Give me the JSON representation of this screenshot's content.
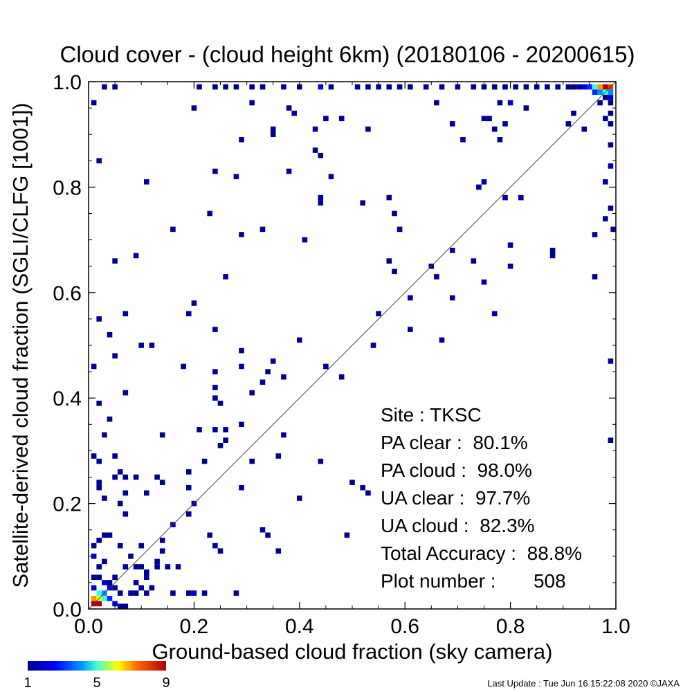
{
  "chart_data": {
    "type": "heatmap",
    "title": "Cloud cover - (cloud height 6km)  (20180106 - 20200615)",
    "xlabel": "Ground-based cloud fraction (sky camera)",
    "ylabel": "Satellite-derived cloud fraction (SGLI/CLFG [1001])",
    "xlim": [
      0.0,
      1.0
    ],
    "ylim": [
      0.0,
      1.0
    ],
    "xticks": [
      "0.0",
      "0.2",
      "0.4",
      "0.6",
      "0.8",
      "1.0"
    ],
    "yticks": [
      "0.0",
      "0.2",
      "0.4",
      "0.6",
      "0.8",
      "1.0"
    ],
    "bin_size": 0.01,
    "diagonal_line": true,
    "colorbar": {
      "min": 1,
      "max": 9,
      "ticks": [
        "1",
        "5",
        "9"
      ]
    },
    "stats": [
      {
        "label": "Site : ",
        "value": "TKSC"
      },
      {
        "label": "PA clear :  ",
        "value": "80.1%"
      },
      {
        "label": "PA cloud :  ",
        "value": "98.0%"
      },
      {
        "label": "UA clear :  ",
        "value": "97.7%"
      },
      {
        "label": "UA cloud :  ",
        "value": "82.3%"
      },
      {
        "label": "Total Accuracy :  ",
        "value": "88.8%"
      },
      {
        "label": "Plot number :       ",
        "value": "508"
      }
    ],
    "cells": [
      [
        0.01,
        0.01,
        9
      ],
      [
        0.02,
        0.01,
        9
      ],
      [
        0.01,
        0.02,
        7
      ],
      [
        0.02,
        0.02,
        6
      ],
      [
        0.03,
        0.02,
        5
      ],
      [
        0.02,
        0.03,
        5
      ],
      [
        0.03,
        0.03,
        4
      ],
      [
        0.04,
        0.02,
        3
      ],
      [
        0.05,
        0.01,
        2
      ],
      [
        0.06,
        0.0,
        1
      ],
      [
        0.07,
        0.0,
        1
      ],
      [
        0.04,
        0.04,
        2
      ],
      [
        0.03,
        0.05,
        2
      ],
      [
        0.02,
        0.06,
        1
      ],
      [
        0.04,
        0.05,
        1
      ],
      [
        0.05,
        0.06,
        1
      ],
      [
        0.01,
        0.04,
        2
      ],
      [
        0.01,
        0.06,
        1
      ],
      [
        0.02,
        0.08,
        1
      ],
      [
        0.03,
        0.09,
        1
      ],
      [
        0.01,
        0.1,
        2
      ],
      [
        0.01,
        0.12,
        1
      ],
      [
        0.02,
        0.13,
        1
      ],
      [
        0.03,
        0.14,
        1
      ],
      [
        0.04,
        0.14,
        1
      ],
      [
        0.05,
        0.04,
        1
      ],
      [
        0.06,
        0.03,
        1
      ],
      [
        0.98,
        0.99,
        9
      ],
      [
        0.99,
        0.99,
        8
      ],
      [
        0.97,
        0.99,
        7
      ],
      [
        0.96,
        0.99,
        5
      ],
      [
        0.98,
        0.98,
        5
      ],
      [
        0.99,
        0.98,
        4
      ],
      [
        0.97,
        0.98,
        4
      ],
      [
        0.96,
        0.98,
        3
      ],
      [
        0.95,
        0.99,
        3
      ],
      [
        0.94,
        0.99,
        2
      ],
      [
        0.93,
        0.99,
        1
      ],
      [
        0.92,
        0.99,
        1
      ],
      [
        0.99,
        0.97,
        2
      ],
      [
        0.98,
        0.97,
        1
      ],
      [
        0.99,
        0.96,
        1
      ],
      [
        0.97,
        0.96,
        1
      ],
      [
        0.99,
        0.94,
        1
      ],
      [
        0.98,
        0.93,
        1
      ],
      [
        0.99,
        0.92,
        1
      ],
      [
        0.91,
        0.99,
        1
      ],
      [
        0.89,
        0.99,
        1
      ],
      [
        0.87,
        0.99,
        1
      ],
      [
        0.85,
        0.99,
        1
      ],
      [
        0.83,
        0.99,
        1
      ],
      [
        0.81,
        0.99,
        1
      ],
      [
        0.79,
        0.99,
        1
      ],
      [
        0.77,
        0.99,
        1
      ],
      [
        0.75,
        0.99,
        1
      ],
      [
        0.73,
        0.99,
        1
      ],
      [
        0.7,
        0.99,
        1
      ],
      [
        0.67,
        0.99,
        1
      ],
      [
        0.64,
        0.99,
        1
      ],
      [
        0.61,
        0.99,
        1
      ],
      [
        0.59,
        0.99,
        1
      ],
      [
        0.57,
        0.99,
        1
      ],
      [
        0.55,
        0.99,
        1
      ],
      [
        0.53,
        0.99,
        1
      ],
      [
        0.51,
        0.99,
        1
      ],
      [
        0.46,
        0.99,
        1
      ],
      [
        0.44,
        0.99,
        2
      ],
      [
        0.4,
        0.99,
        1
      ],
      [
        0.37,
        0.99,
        1
      ],
      [
        0.33,
        0.99,
        1
      ],
      [
        0.31,
        0.99,
        1
      ],
      [
        0.28,
        0.99,
        1
      ],
      [
        0.26,
        0.99,
        1
      ],
      [
        0.24,
        0.99,
        1
      ],
      [
        0.21,
        0.99,
        1
      ],
      [
        0.05,
        0.99,
        1
      ],
      [
        0.03,
        0.99,
        1
      ],
      [
        0.8,
        0.96,
        2
      ],
      [
        0.78,
        0.96,
        1
      ],
      [
        0.01,
        0.96,
        1
      ],
      [
        0.02,
        0.85,
        1
      ],
      [
        0.11,
        0.81,
        1
      ],
      [
        0.2,
        0.95,
        1
      ],
      [
        0.24,
        0.83,
        1
      ],
      [
        0.23,
        0.75,
        1
      ],
      [
        0.28,
        0.82,
        1
      ],
      [
        0.29,
        0.89,
        1
      ],
      [
        0.31,
        0.96,
        1
      ],
      [
        0.35,
        0.91,
        1
      ],
      [
        0.35,
        0.9,
        1
      ],
      [
        0.38,
        0.95,
        1
      ],
      [
        0.38,
        0.83,
        1
      ],
      [
        0.39,
        0.94,
        1
      ],
      [
        0.43,
        0.91,
        1
      ],
      [
        0.43,
        0.87,
        1
      ],
      [
        0.44,
        0.86,
        1
      ],
      [
        0.45,
        0.93,
        1
      ],
      [
        0.44,
        0.78,
        1
      ],
      [
        0.44,
        0.77,
        1
      ],
      [
        0.46,
        0.82,
        1
      ],
      [
        0.48,
        0.93,
        1
      ],
      [
        0.53,
        0.91,
        1
      ],
      [
        0.52,
        0.77,
        1
      ],
      [
        0.57,
        0.78,
        1
      ],
      [
        0.58,
        0.75,
        1
      ],
      [
        0.59,
        0.72,
        1
      ],
      [
        0.66,
        0.96,
        1
      ],
      [
        0.69,
        0.92,
        1
      ],
      [
        0.71,
        0.89,
        1
      ],
      [
        0.74,
        0.8,
        1
      ],
      [
        0.75,
        0.81,
        1
      ],
      [
        0.75,
        0.93,
        1
      ],
      [
        0.76,
        0.93,
        1
      ],
      [
        0.77,
        0.91,
        1
      ],
      [
        0.78,
        0.89,
        1
      ],
      [
        0.79,
        0.92,
        1
      ],
      [
        0.82,
        0.78,
        1
      ],
      [
        0.79,
        0.78,
        1
      ],
      [
        0.83,
        0.95,
        1
      ],
      [
        0.91,
        0.92,
        1
      ],
      [
        0.92,
        0.94,
        1
      ],
      [
        0.94,
        0.91,
        1
      ],
      [
        0.96,
        0.71,
        1
      ],
      [
        0.96,
        0.63,
        1
      ],
      [
        0.98,
        0.74,
        1
      ],
      [
        0.99,
        0.76,
        1
      ],
      [
        0.98,
        0.81,
        1
      ],
      [
        0.99,
        0.84,
        1
      ],
      [
        0.99,
        0.88,
        1
      ],
      [
        1.0,
        0.72,
        1
      ],
      [
        0.99,
        0.47,
        1
      ],
      [
        0.99,
        0.32,
        1
      ],
      [
        0.09,
        0.67,
        1
      ],
      [
        0.05,
        0.66,
        1
      ],
      [
        0.16,
        0.72,
        1
      ],
      [
        0.26,
        0.63,
        1
      ],
      [
        0.29,
        0.71,
        1
      ],
      [
        0.33,
        0.72,
        1
      ],
      [
        0.41,
        0.7,
        1
      ],
      [
        0.19,
        0.56,
        1
      ],
      [
        0.2,
        0.58,
        1
      ],
      [
        0.24,
        0.53,
        1
      ],
      [
        0.29,
        0.49,
        1
      ],
      [
        0.29,
        0.46,
        1
      ],
      [
        0.34,
        0.45,
        1
      ],
      [
        0.35,
        0.47,
        1
      ],
      [
        0.31,
        0.41,
        1
      ],
      [
        0.33,
        0.43,
        1
      ],
      [
        0.37,
        0.44,
        1
      ],
      [
        0.4,
        0.51,
        1
      ],
      [
        0.45,
        0.46,
        1
      ],
      [
        0.48,
        0.44,
        1
      ],
      [
        0.54,
        0.5,
        1
      ],
      [
        0.55,
        0.56,
        1
      ],
      [
        0.57,
        0.66,
        1
      ],
      [
        0.58,
        0.64,
        1
      ],
      [
        0.61,
        0.53,
        1
      ],
      [
        0.61,
        0.59,
        1
      ],
      [
        0.65,
        0.65,
        1
      ],
      [
        0.66,
        0.63,
        1
      ],
      [
        0.67,
        0.51,
        1
      ],
      [
        0.69,
        0.59,
        1
      ],
      [
        0.69,
        0.68,
        1
      ],
      [
        0.73,
        0.66,
        1
      ],
      [
        0.75,
        0.62,
        1
      ],
      [
        0.77,
        0.56,
        1
      ],
      [
        0.8,
        0.65,
        1
      ],
      [
        0.8,
        0.69,
        1
      ],
      [
        0.88,
        0.67,
        1
      ],
      [
        0.88,
        0.68,
        1
      ],
      [
        0.02,
        0.55,
        1
      ],
      [
        0.01,
        0.46,
        1
      ],
      [
        0.04,
        0.52,
        1
      ],
      [
        0.05,
        0.48,
        1
      ],
      [
        0.07,
        0.56,
        1
      ],
      [
        0.1,
        0.5,
        1
      ],
      [
        0.12,
        0.5,
        1
      ],
      [
        0.18,
        0.46,
        1
      ],
      [
        0.07,
        0.41,
        1
      ],
      [
        0.02,
        0.39,
        1
      ],
      [
        0.04,
        0.36,
        1
      ],
      [
        0.03,
        0.33,
        1
      ],
      [
        0.14,
        0.33,
        1
      ],
      [
        0.21,
        0.34,
        1
      ],
      [
        0.22,
        0.28,
        1
      ],
      [
        0.24,
        0.45,
        1
      ],
      [
        0.24,
        0.42,
        1
      ],
      [
        0.24,
        0.4,
        1
      ],
      [
        0.25,
        0.39,
        1
      ],
      [
        0.24,
        0.34,
        1
      ],
      [
        0.25,
        0.31,
        1
      ],
      [
        0.26,
        0.34,
        1
      ],
      [
        0.26,
        0.32,
        1
      ],
      [
        0.29,
        0.35,
        1
      ],
      [
        0.31,
        0.28,
        1
      ],
      [
        0.36,
        0.29,
        1
      ],
      [
        0.37,
        0.33,
        1
      ],
      [
        0.44,
        0.28,
        1
      ],
      [
        0.4,
        0.21,
        1
      ],
      [
        0.29,
        0.23,
        1
      ],
      [
        0.5,
        0.24,
        1
      ],
      [
        0.52,
        0.23,
        1
      ],
      [
        0.53,
        0.22,
        1
      ],
      [
        0.49,
        0.14,
        1
      ],
      [
        0.33,
        0.15,
        1
      ],
      [
        0.34,
        0.14,
        1
      ],
      [
        0.36,
        0.11,
        1
      ],
      [
        0.23,
        0.14,
        1
      ],
      [
        0.24,
        0.12,
        1
      ],
      [
        0.25,
        0.11,
        1
      ],
      [
        0.19,
        0.18,
        1
      ],
      [
        0.2,
        0.2,
        1
      ],
      [
        0.19,
        0.26,
        1
      ],
      [
        0.19,
        0.23,
        1
      ],
      [
        0.16,
        0.16,
        1
      ],
      [
        0.14,
        0.13,
        1
      ],
      [
        0.01,
        0.29,
        1
      ],
      [
        0.02,
        0.28,
        1
      ],
      [
        0.05,
        0.29,
        1
      ],
      [
        0.05,
        0.25,
        1
      ],
      [
        0.06,
        0.26,
        1
      ],
      [
        0.07,
        0.25,
        1
      ],
      [
        0.02,
        0.24,
        1
      ],
      [
        0.02,
        0.23,
        1
      ],
      [
        0.03,
        0.21,
        1
      ],
      [
        0.06,
        0.2,
        1
      ],
      [
        0.07,
        0.22,
        1
      ],
      [
        0.07,
        0.18,
        1
      ],
      [
        0.09,
        0.25,
        1
      ],
      [
        0.11,
        0.22,
        1
      ],
      [
        0.13,
        0.25,
        1
      ],
      [
        0.14,
        0.24,
        1
      ],
      [
        0.14,
        0.11,
        1
      ],
      [
        0.13,
        0.09,
        1
      ],
      [
        0.11,
        0.07,
        1
      ],
      [
        0.11,
        0.06,
        1
      ],
      [
        0.12,
        0.04,
        1
      ],
      [
        0.09,
        0.05,
        1
      ],
      [
        0.1,
        0.04,
        1
      ],
      [
        0.08,
        0.03,
        1
      ],
      [
        0.09,
        0.03,
        1
      ],
      [
        0.11,
        0.03,
        1
      ],
      [
        0.13,
        0.08,
        1
      ],
      [
        0.15,
        0.08,
        1
      ],
      [
        0.17,
        0.08,
        1
      ],
      [
        0.07,
        0.08,
        1
      ],
      [
        0.09,
        0.08,
        1
      ],
      [
        0.1,
        0.08,
        1
      ],
      [
        0.1,
        0.12,
        1
      ],
      [
        0.16,
        0.03,
        1
      ],
      [
        0.19,
        0.03,
        1
      ],
      [
        0.2,
        0.03,
        2
      ],
      [
        0.22,
        0.03,
        1
      ],
      [
        0.28,
        0.03,
        1
      ],
      [
        0.06,
        0.12,
        1
      ],
      [
        0.08,
        0.1,
        1
      ]
    ]
  },
  "footer": {
    "text": "Last Update : Tue Jun 16 15:22:08 2020  ©JAXA"
  }
}
